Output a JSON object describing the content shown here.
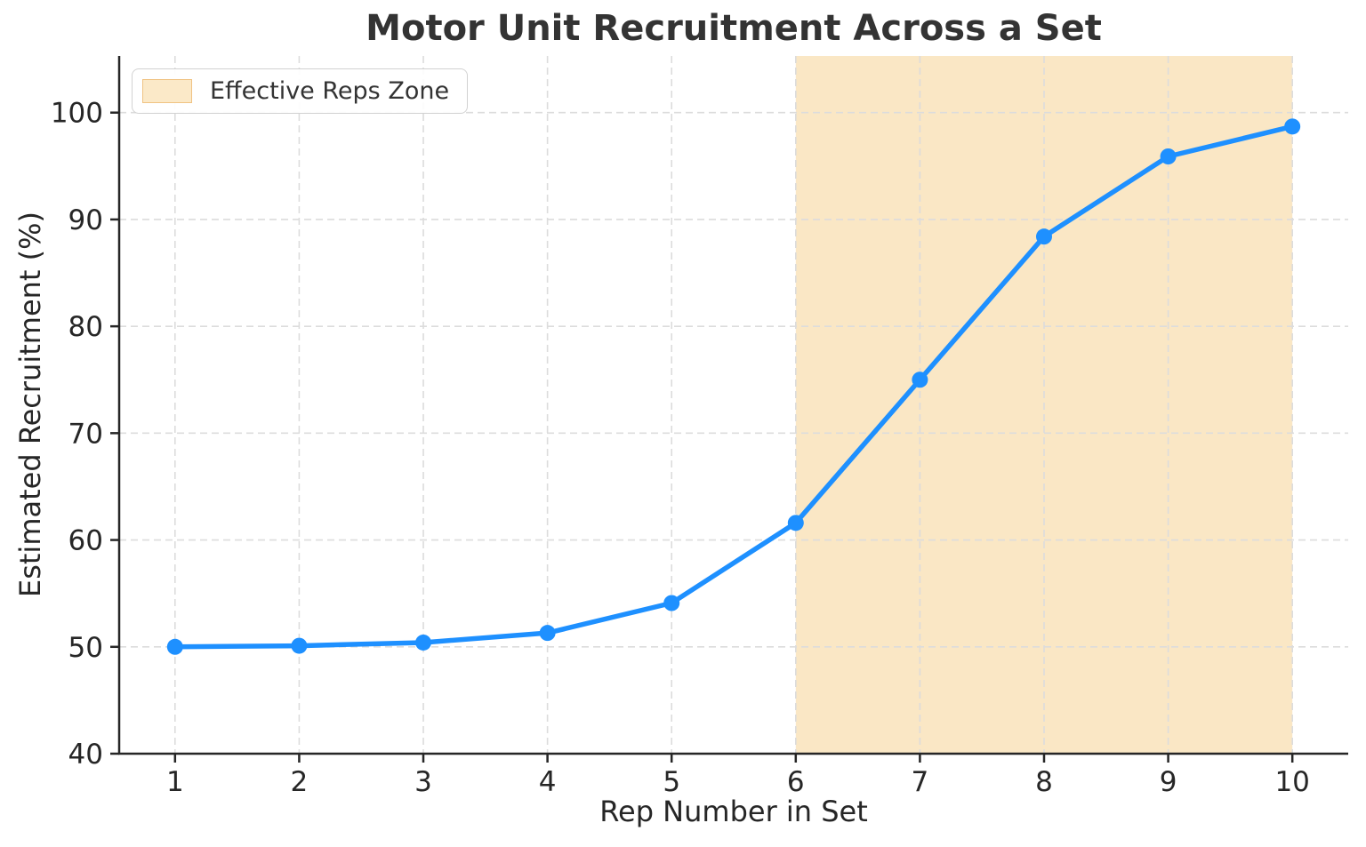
{
  "chart_data": {
    "type": "line",
    "title": "Motor Unit Recruitment Across a Set",
    "xlabel": "Rep Number in Set",
    "ylabel": "Estimated Recruitment (%)",
    "x": [
      1,
      2,
      3,
      4,
      5,
      6,
      7,
      8,
      9,
      10
    ],
    "series": [
      {
        "name": "Estimated recruitment",
        "values": [
          50.0,
          50.1,
          50.4,
          51.3,
          54.1,
          61.6,
          75.0,
          88.4,
          95.9,
          98.7
        ]
      }
    ],
    "xticks": [
      1,
      2,
      3,
      4,
      5,
      6,
      7,
      8,
      9,
      10
    ],
    "yticks": [
      40,
      50,
      60,
      70,
      80,
      90,
      100
    ],
    "xlim": [
      0.55,
      10.45
    ],
    "ylim": [
      40,
      105.3
    ],
    "grid": true,
    "grid_style": "dashed",
    "legend": {
      "position": "upper-left",
      "entries": [
        {
          "label": "Effective Reps Zone",
          "type": "patch"
        }
      ]
    },
    "highlight_zone": {
      "label": "Effective Reps Zone",
      "x_start": 6,
      "x_end": 10
    },
    "colors": {
      "line": "#1E90FF",
      "marker": "#1E90FF",
      "zone_fill": "#FAE7C5",
      "swatch_fill": "#FBE9C8",
      "swatch_border": "#F0C383",
      "grid": "#DCDCDC",
      "axis": "#262626",
      "tick_text": "#262626",
      "title_text": "#333333"
    }
  }
}
